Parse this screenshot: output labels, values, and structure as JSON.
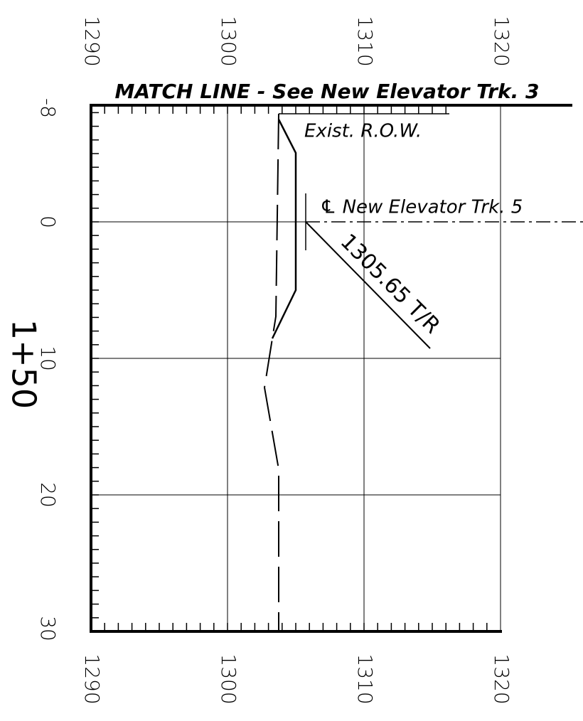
{
  "header": {
    "match_line": "MATCH LINE - See New Elevator Trk. 3"
  },
  "elevation_labels": [
    "1290",
    "1300",
    "1310",
    "1320"
  ],
  "offset_labels": [
    "-8",
    "0",
    "10",
    "20",
    "30"
  ],
  "station": "1+50",
  "annotations": {
    "row": "Exist. R.O.W.",
    "centerline": "℄ New Elevator Trk. 5",
    "top_of_rail": "1305.65 T/R"
  }
}
